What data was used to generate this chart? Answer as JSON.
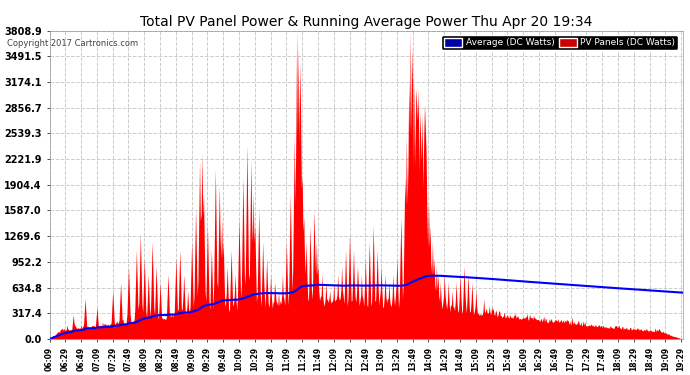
{
  "title": "Total PV Panel Power & Running Average Power Thu Apr 20 19:34",
  "copyright": "Copyright 2017 Cartronics.com",
  "legend_avg": "Average (DC Watts)",
  "legend_pv": "PV Panels (DC Watts)",
  "ymax": 3808.9,
  "yticks": [
    0.0,
    317.4,
    634.8,
    952.2,
    1269.6,
    1587.0,
    1904.4,
    2221.9,
    2539.3,
    2856.7,
    3174.1,
    3491.5,
    3808.9
  ],
  "bg_color": "#ffffff",
  "plot_bg": "#ffffff",
  "grid_color": "#cccccc",
  "pv_color": "#ff0000",
  "avg_color": "#0000ff",
  "title_color": "#000000",
  "tick_color": "#000000",
  "legend_avg_bg": "#0000aa",
  "legend_pv_bg": "#cc0000"
}
